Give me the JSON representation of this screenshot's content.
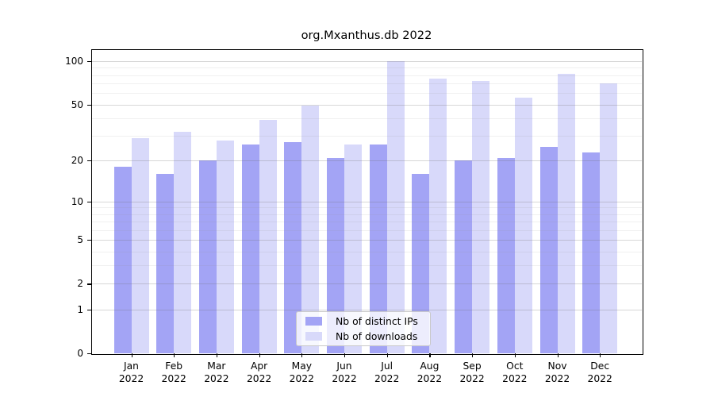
{
  "chart_data": {
    "type": "bar",
    "title": "org.Mxanthus.db 2022",
    "categories": [
      "Jan",
      "Feb",
      "Mar",
      "Apr",
      "May",
      "Jun",
      "Jul",
      "Aug",
      "Sep",
      "Oct",
      "Nov",
      "Dec"
    ],
    "x_tick_second_line": "2022",
    "series": [
      {
        "name": "Nb of distinct IPs",
        "color": "#a3a4f5",
        "values": [
          18,
          16,
          20,
          26,
          27,
          21,
          26,
          16,
          20,
          21,
          25,
          23
        ]
      },
      {
        "name": "Nb of downloads",
        "color": "#d8d9fa",
        "values": [
          29,
          32,
          28,
          39,
          49,
          26,
          100,
          76,
          73,
          56,
          82,
          70
        ]
      }
    ],
    "y_axis": {
      "scale": "log10(1+v)",
      "major_ticks": [
        0,
        1,
        2,
        5,
        10,
        20,
        50,
        100
      ],
      "minor_gridlines": [
        3,
        4,
        6,
        7,
        8,
        9,
        30,
        40,
        60,
        70,
        80,
        90
      ],
      "ylim": [
        0,
        121
      ]
    },
    "xlabel": "",
    "ylabel": "",
    "grid": true,
    "legend_position": "bottom-center"
  },
  "colors": {
    "background": "#ffffff",
    "spine": "#000000",
    "text": "#000000",
    "grid_major": "rgba(110,110,110,0.28)",
    "grid_minor": "rgba(150,150,150,0.14)",
    "legend_border": "#c9c9c9"
  }
}
